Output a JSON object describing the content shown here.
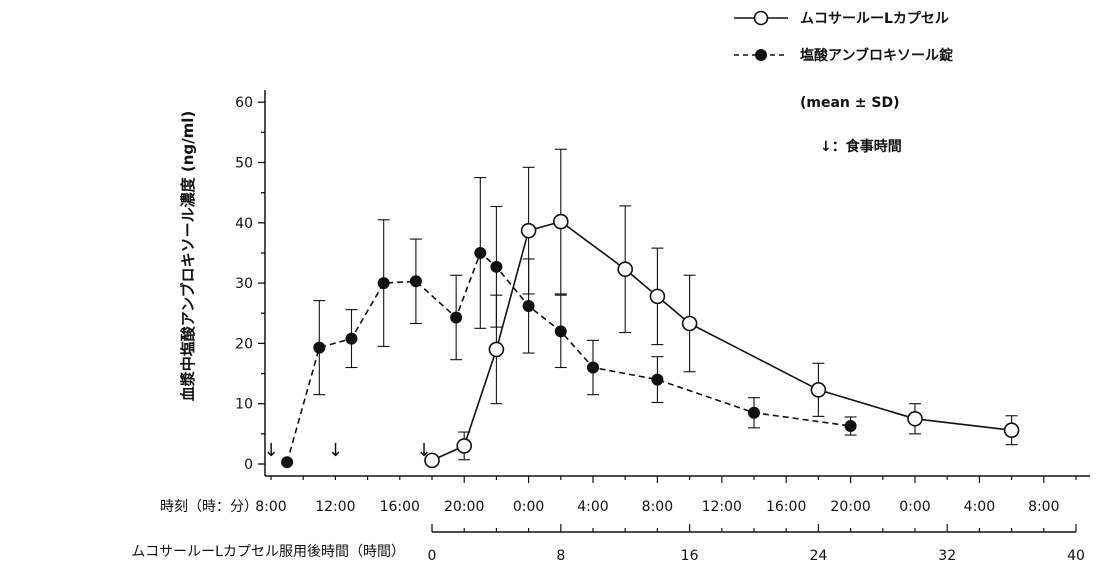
{
  "chart_data": {
    "type": "line",
    "ylabel": "血漿中塩酸アンブロキソール濃度 (ng/ml)",
    "ylim": [
      0,
      60
    ],
    "y_ticks": [
      "0",
      "10",
      "20",
      "30",
      "40",
      "50",
      "60"
    ],
    "clock_axis": {
      "label": "時刻（時：分）",
      "ticks": [
        "8:00",
        "12:00",
        "16:00",
        "20:00",
        "0:00",
        "4:00",
        "8:00",
        "12:00",
        "16:00",
        "20:00",
        "0:00",
        "4:00",
        "8:00"
      ]
    },
    "hours_axis": {
      "label": "ムコサールーLカプセル服用後時間（時間）",
      "xlim": [
        0,
        40
      ],
      "ticks": [
        "0",
        "8",
        "16",
        "24",
        "32",
        "40"
      ]
    },
    "meal_marker": "↓",
    "meal_times_hours": [
      -10,
      -6,
      -0.5
    ],
    "series": [
      {
        "name": "ムコサールーLカプセル",
        "marker": "open-circle",
        "line": "solid",
        "x": [
          0,
          2,
          4,
          6,
          8,
          12,
          14,
          16,
          24,
          30,
          36
        ],
        "y": [
          0.6,
          3.0,
          19.0,
          38.7,
          40.2,
          32.3,
          27.8,
          23.3,
          12.3,
          7.5,
          5.6
        ],
        "sd": [
          0,
          2.3,
          9.0,
          10.5,
          12.0,
          10.5,
          8.0,
          8.0,
          4.4,
          2.5,
          2.4
        ]
      },
      {
        "name": "塩酸アンブロキソール錠",
        "marker": "filled-circle",
        "line": "dashed",
        "x": [
          -9,
          -7,
          -5,
          -3,
          -1,
          1.5,
          3,
          4,
          6,
          8,
          10,
          14,
          20,
          26
        ],
        "y": [
          0.3,
          19.3,
          20.8,
          30.0,
          30.3,
          24.3,
          35.0,
          32.7,
          26.2,
          22.0,
          16.0,
          14.0,
          8.5,
          6.3
        ],
        "sd": [
          0,
          7.8,
          4.8,
          10.5,
          7.0,
          7.0,
          12.5,
          10.0,
          7.8,
          6.0,
          4.5,
          3.8,
          2.5,
          1.5
        ]
      }
    ],
    "legend": {
      "position": "top-right",
      "note": "(mean ± SD)",
      "meal_note": "↓：食事時間"
    }
  }
}
